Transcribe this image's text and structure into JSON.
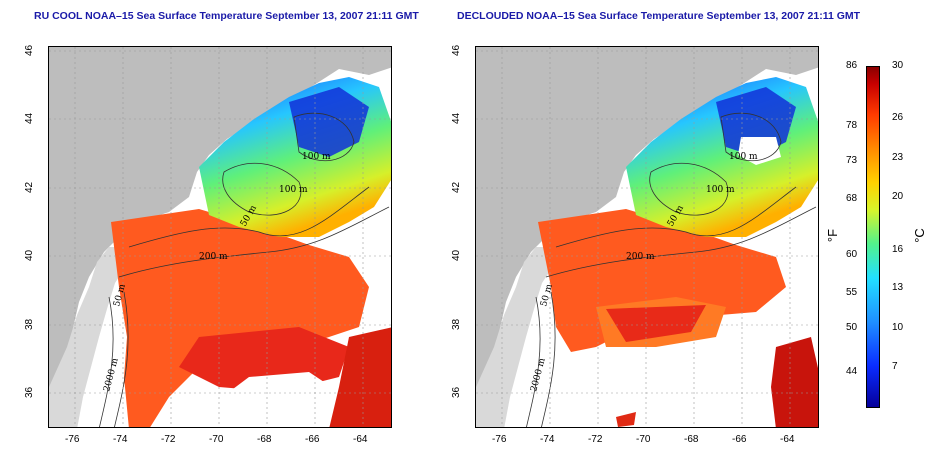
{
  "left_panel": {
    "title": "RU COOL NOAA–15 Sea Surface Temperature September 13, 2007 21:11 GMT"
  },
  "right_panel": {
    "title": "DECLOUDED NOAA–15 Sea Surface Temperature September 13, 2007 21:11 GMT"
  },
  "axes": {
    "x_ticks": [
      "-76",
      "-74",
      "-72",
      "-70",
      "-68",
      "-66",
      "-64"
    ],
    "y_ticks": [
      "46",
      "44",
      "42",
      "40",
      "38",
      "36"
    ]
  },
  "contour_labels": [
    "100 m",
    "100 m",
    "50 m",
    "200 m",
    "50 m",
    "2000 m"
  ],
  "colorbar": {
    "fahrenheit_ticks": [
      "86",
      "78",
      "73",
      "68",
      "60",
      "55",
      "50",
      "44"
    ],
    "celsius_ticks": [
      "30",
      "26",
      "23",
      "20",
      "16",
      "13",
      "10",
      "7"
    ],
    "unit_f": "°F",
    "unit_c": "°C"
  },
  "colors": {
    "land": "#bdbdbd",
    "title": "#1a1aa8",
    "warm": "#ff4a1a",
    "cool": "#1f6fff"
  }
}
